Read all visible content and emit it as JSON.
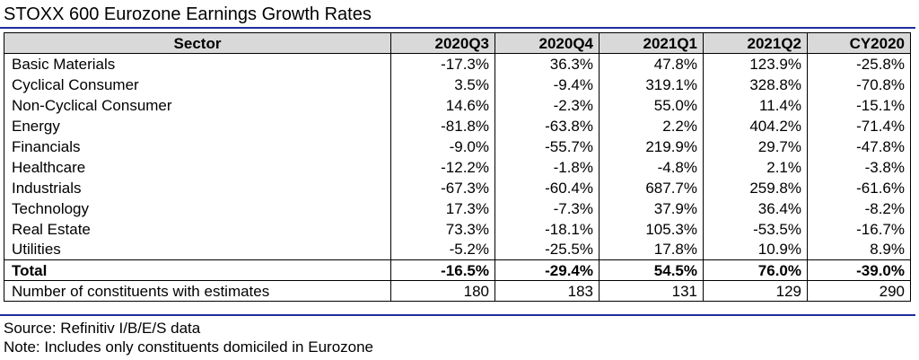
{
  "title": "STOXX 600 Eurozone Earnings Growth Rates",
  "table": {
    "columns": [
      "Sector",
      "2020Q3",
      "2020Q4",
      "2021Q1",
      "2021Q2",
      "CY2020"
    ],
    "rows": [
      {
        "sector": "Basic Materials",
        "values": [
          "-17.3%",
          "36.3%",
          "47.8%",
          "123.9%",
          "-25.8%"
        ]
      },
      {
        "sector": "Cyclical Consumer",
        "values": [
          "3.5%",
          "-9.4%",
          "319.1%",
          "328.8%",
          "-70.8%"
        ]
      },
      {
        "sector": "Non-Cyclical Consumer",
        "values": [
          "14.6%",
          "-2.3%",
          "55.0%",
          "11.4%",
          "-15.1%"
        ]
      },
      {
        "sector": "Energy",
        "values": [
          "-81.8%",
          "-63.8%",
          "2.2%",
          "404.2%",
          "-71.4%"
        ]
      },
      {
        "sector": "Financials",
        "values": [
          "-9.0%",
          "-55.7%",
          "219.9%",
          "29.7%",
          "-47.8%"
        ]
      },
      {
        "sector": "Healthcare",
        "values": [
          "-12.2%",
          "-1.8%",
          "-4.8%",
          "2.1%",
          "-3.8%"
        ]
      },
      {
        "sector": "Industrials",
        "values": [
          "-67.3%",
          "-60.4%",
          "687.7%",
          "259.8%",
          "-61.6%"
        ]
      },
      {
        "sector": "Technology",
        "values": [
          "17.3%",
          "-7.3%",
          "37.9%",
          "36.4%",
          "-8.2%"
        ]
      },
      {
        "sector": "Real Estate",
        "values": [
          "73.3%",
          "-18.1%",
          "105.3%",
          "-53.5%",
          "-16.7%"
        ]
      },
      {
        "sector": "Utilities",
        "values": [
          "-5.2%",
          "-25.5%",
          "17.8%",
          "10.9%",
          "8.9%"
        ]
      }
    ],
    "total": {
      "sector": "Total",
      "values": [
        "-16.5%",
        "-29.4%",
        "54.5%",
        "76.0%",
        "-39.0%"
      ]
    },
    "constituents": {
      "label": "Number of constituents with estimates",
      "values": [
        "180",
        "183",
        "131",
        "129",
        "290"
      ]
    }
  },
  "source": "Source: Refinitiv I/B/E/S data",
  "note": "Note: Includes only constituents domiciled in Eurozone",
  "colors": {
    "rule": "#1f2c9c",
    "header_bg": "#d9d9d9"
  }
}
